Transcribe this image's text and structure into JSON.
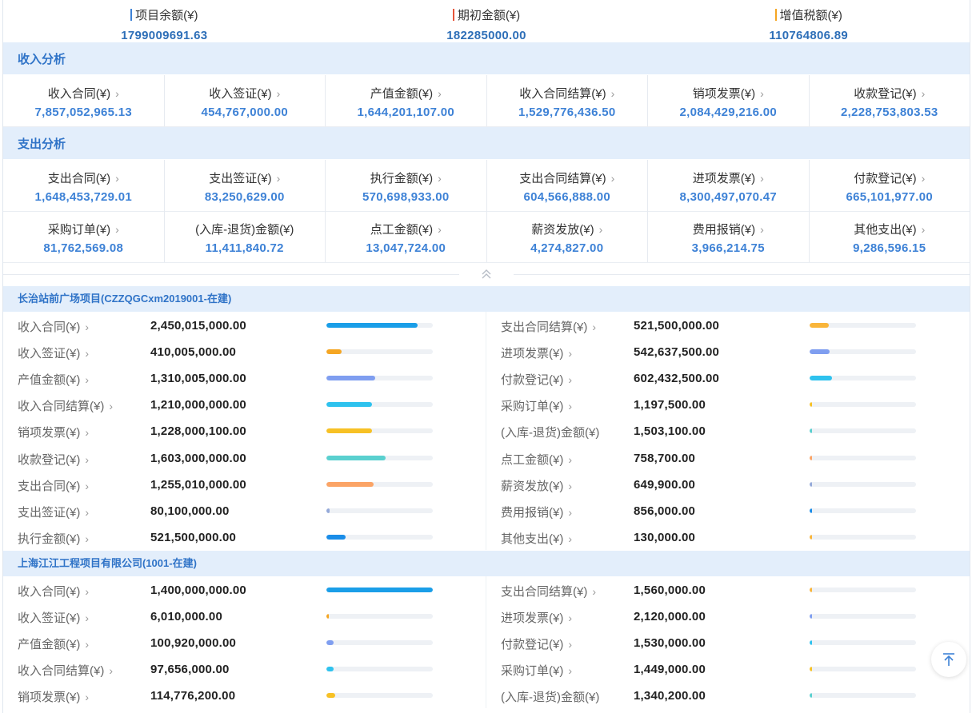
{
  "summary": [
    {
      "label": "项目余额(¥)",
      "value": "1799009691.63",
      "accent": "#3e82d6"
    },
    {
      "label": "期初金额(¥)",
      "value": "182285000.00",
      "accent": "#e6553a"
    },
    {
      "label": "增值税额(¥)",
      "value": "110764806.89",
      "accent": "#f5a623"
    }
  ],
  "income": {
    "title": "收入分析",
    "items": [
      {
        "label": "收入合同(¥)",
        "value": "7,857,052,965.13"
      },
      {
        "label": "收入签证(¥)",
        "value": "454,767,000.00"
      },
      {
        "label": "产值金额(¥)",
        "value": "1,644,201,107.00"
      },
      {
        "label": "收入合同结算(¥)",
        "value": "1,529,776,436.50"
      },
      {
        "label": "销项发票(¥)",
        "value": "2,084,429,216.00"
      },
      {
        "label": "收款登记(¥)",
        "value": "2,228,753,803.53"
      }
    ]
  },
  "expense": {
    "title": "支出分析",
    "row1": [
      {
        "label": "支出合同(¥)",
        "value": "1,648,453,729.01"
      },
      {
        "label": "支出签证(¥)",
        "value": "83,250,629.00"
      },
      {
        "label": "执行金额(¥)",
        "value": "570,698,933.00"
      },
      {
        "label": "支出合同结算(¥)",
        "value": "604,566,888.00"
      },
      {
        "label": "进项发票(¥)",
        "value": "8,300,497,070.47"
      },
      {
        "label": "付款登记(¥)",
        "value": "665,101,977.00"
      }
    ],
    "row2": [
      {
        "label": "采购订单(¥)",
        "value": "81,762,569.08"
      },
      {
        "label": "(入库-退货)金额(¥)",
        "value": "11,411,840.72"
      },
      {
        "label": "点工金额(¥)",
        "value": "13,047,724.00"
      },
      {
        "label": "薪资发放(¥)",
        "value": "4,274,827.00"
      },
      {
        "label": "费用报销(¥)",
        "value": "3,966,214.75"
      },
      {
        "label": "其他支出(¥)",
        "value": "9,286,596.15"
      }
    ]
  },
  "icons": {
    "chevron": "chevron-right-icon",
    "collapse": "double-chevron-up-icon",
    "totop": "back-to-top-icon"
  },
  "projects": [
    {
      "title": "长治站前广场项目(CZZQGCxm2019001-在建)",
      "left": [
        {
          "label": "收入合同(¥)",
          "value": "2,450,015,000.00",
          "pct": 0.86,
          "color": "#1a9ee8",
          "chev": true
        },
        {
          "label": "收入签证(¥)",
          "value": "410,005,000.00",
          "pct": 0.14,
          "color": "#f5a623",
          "chev": true
        },
        {
          "label": "产值金额(¥)",
          "value": "1,310,005,000.00",
          "pct": 0.46,
          "color": "#7f9ef0",
          "chev": true
        },
        {
          "label": "收入合同结算(¥)",
          "value": "1,210,000,000.00",
          "pct": 0.43,
          "color": "#2ec2ee",
          "chev": true
        },
        {
          "label": "销项发票(¥)",
          "value": "1,228,000,100.00",
          "pct": 0.43,
          "color": "#f7c125",
          "chev": true
        },
        {
          "label": "收款登记(¥)",
          "value": "1,603,000,000.00",
          "pct": 0.56,
          "color": "#5ad0cf",
          "chev": true
        },
        {
          "label": "支出合同(¥)",
          "value": "1,255,010,000.00",
          "pct": 0.44,
          "color": "#fba466",
          "chev": true
        },
        {
          "label": "支出签证(¥)",
          "value": "80,100,000.00",
          "pct": 0.03,
          "color": "#94a9d9",
          "chev": true
        },
        {
          "label": "执行金额(¥)",
          "value": "521,500,000.00",
          "pct": 0.18,
          "color": "#1a8de8",
          "chev": true
        }
      ],
      "right": [
        {
          "label": "支出合同结算(¥)",
          "value": "521,500,000.00",
          "pct": 0.18,
          "color": "#f9b53a",
          "chev": true
        },
        {
          "label": "进项发票(¥)",
          "value": "542,637,500.00",
          "pct": 0.19,
          "color": "#7f9ef0",
          "chev": true
        },
        {
          "label": "付款登记(¥)",
          "value": "602,432,500.00",
          "pct": 0.21,
          "color": "#2ec2ee",
          "chev": true
        },
        {
          "label": "采购订单(¥)",
          "value": "1,197,500.00",
          "pct": 0.02,
          "color": "#f7c125",
          "chev": true
        },
        {
          "label": "(入库-退货)金额(¥)",
          "value": "1,503,100.00",
          "pct": 0.02,
          "color": "#5ad0cf",
          "chev": false
        },
        {
          "label": "点工金额(¥)",
          "value": "758,700.00",
          "pct": 0.02,
          "color": "#fba466",
          "chev": true
        },
        {
          "label": "薪资发放(¥)",
          "value": "649,900.00",
          "pct": 0.02,
          "color": "#94a9d9",
          "chev": true
        },
        {
          "label": "费用报销(¥)",
          "value": "856,000.00",
          "pct": 0.02,
          "color": "#1a8de8",
          "chev": true
        },
        {
          "label": "其他支出(¥)",
          "value": "130,000.00",
          "pct": 0.02,
          "color": "#f9b53a",
          "chev": true
        }
      ]
    },
    {
      "title": "上海江江工程项目有限公司(1001-在建)",
      "left": [
        {
          "label": "收入合同(¥)",
          "value": "1,400,000,000.00",
          "pct": 1.0,
          "color": "#1a9ee8",
          "chev": true
        },
        {
          "label": "收入签证(¥)",
          "value": "6,010,000.00",
          "pct": 0.02,
          "color": "#f5a623",
          "chev": true
        },
        {
          "label": "产值金额(¥)",
          "value": "100,920,000.00",
          "pct": 0.07,
          "color": "#7f9ef0",
          "chev": true
        },
        {
          "label": "收入合同结算(¥)",
          "value": "97,656,000.00",
          "pct": 0.07,
          "color": "#2ec2ee",
          "chev": true
        },
        {
          "label": "销项发票(¥)",
          "value": "114,776,200.00",
          "pct": 0.08,
          "color": "#f7c125",
          "chev": true
        }
      ],
      "right": [
        {
          "label": "支出合同结算(¥)",
          "value": "1,560,000.00",
          "pct": 0.02,
          "color": "#f9b53a",
          "chev": true
        },
        {
          "label": "进项发票(¥)",
          "value": "2,120,000.00",
          "pct": 0.02,
          "color": "#7f9ef0",
          "chev": true
        },
        {
          "label": "付款登记(¥)",
          "value": "1,530,000.00",
          "pct": 0.02,
          "color": "#2ec2ee",
          "chev": true
        },
        {
          "label": "采购订单(¥)",
          "value": "1,449,000.00",
          "pct": 0.02,
          "color": "#f7c125",
          "chev": true
        },
        {
          "label": "(入库-退货)金额(¥)",
          "value": "1,340,200.00",
          "pct": 0.02,
          "color": "#5ad0cf",
          "chev": false
        }
      ]
    }
  ]
}
